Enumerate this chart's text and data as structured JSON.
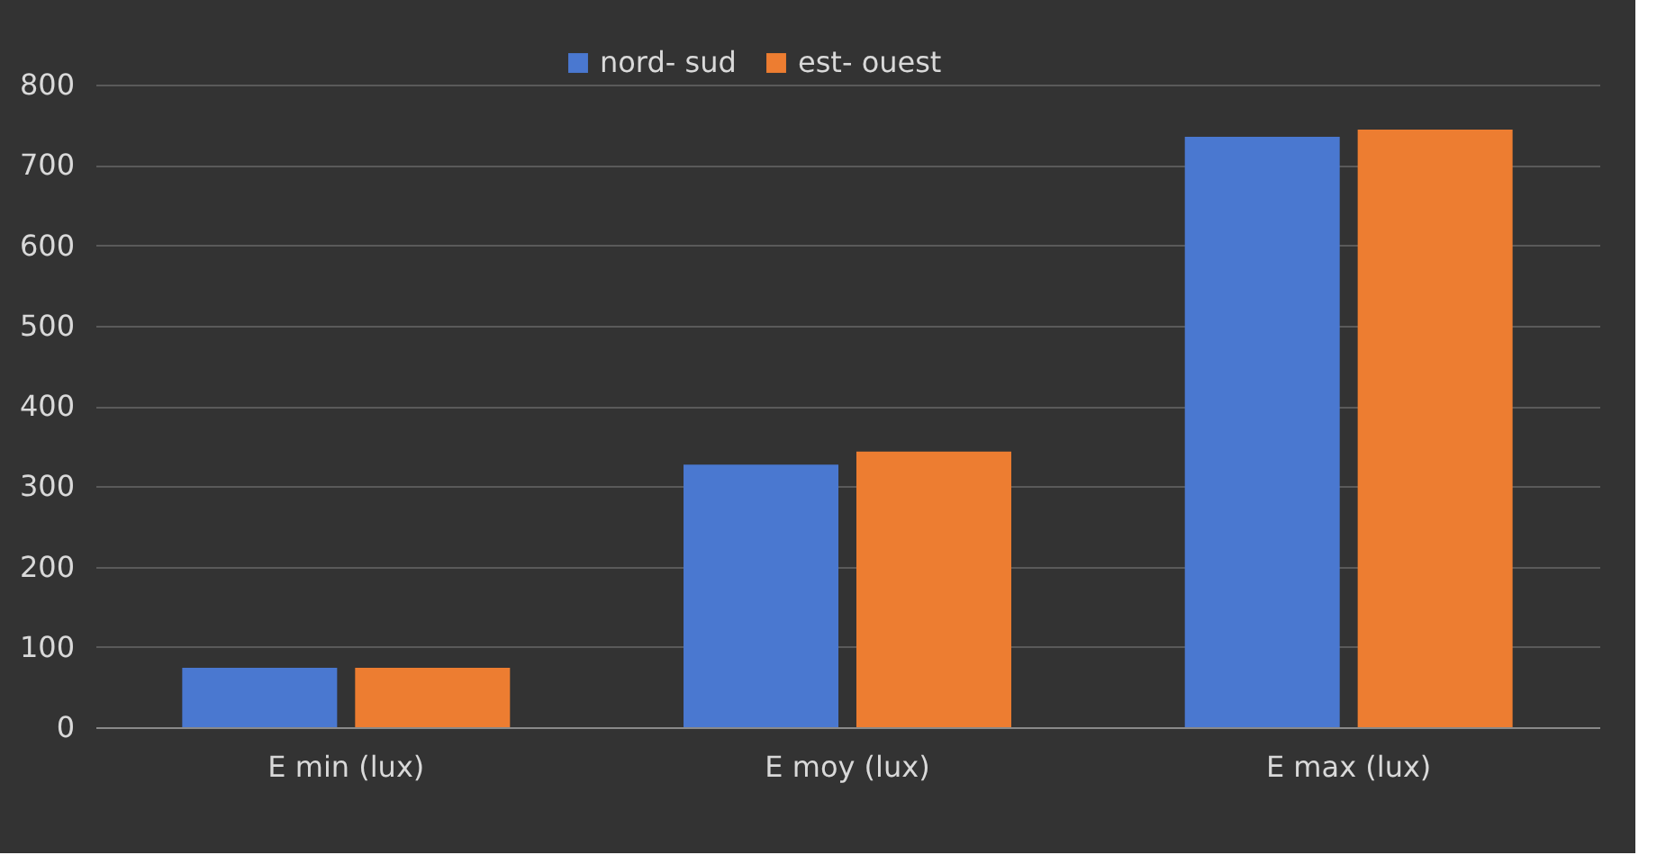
{
  "chart_data": {
    "type": "bar",
    "categories": [
      "E min (lux)",
      "E moy (lux)",
      "E max (lux)"
    ],
    "series": [
      {
        "name": "nord- sud",
        "color": "#4a78d0",
        "values": [
          74,
          327,
          735
        ]
      },
      {
        "name": "est- ouest",
        "color": "#ed7d31",
        "values": [
          74,
          343,
          744
        ]
      }
    ],
    "ylim": [
      0,
      800
    ],
    "yticks": [
      0,
      100,
      200,
      300,
      400,
      500,
      600,
      700,
      800
    ],
    "grid": "y",
    "legend": "top"
  }
}
